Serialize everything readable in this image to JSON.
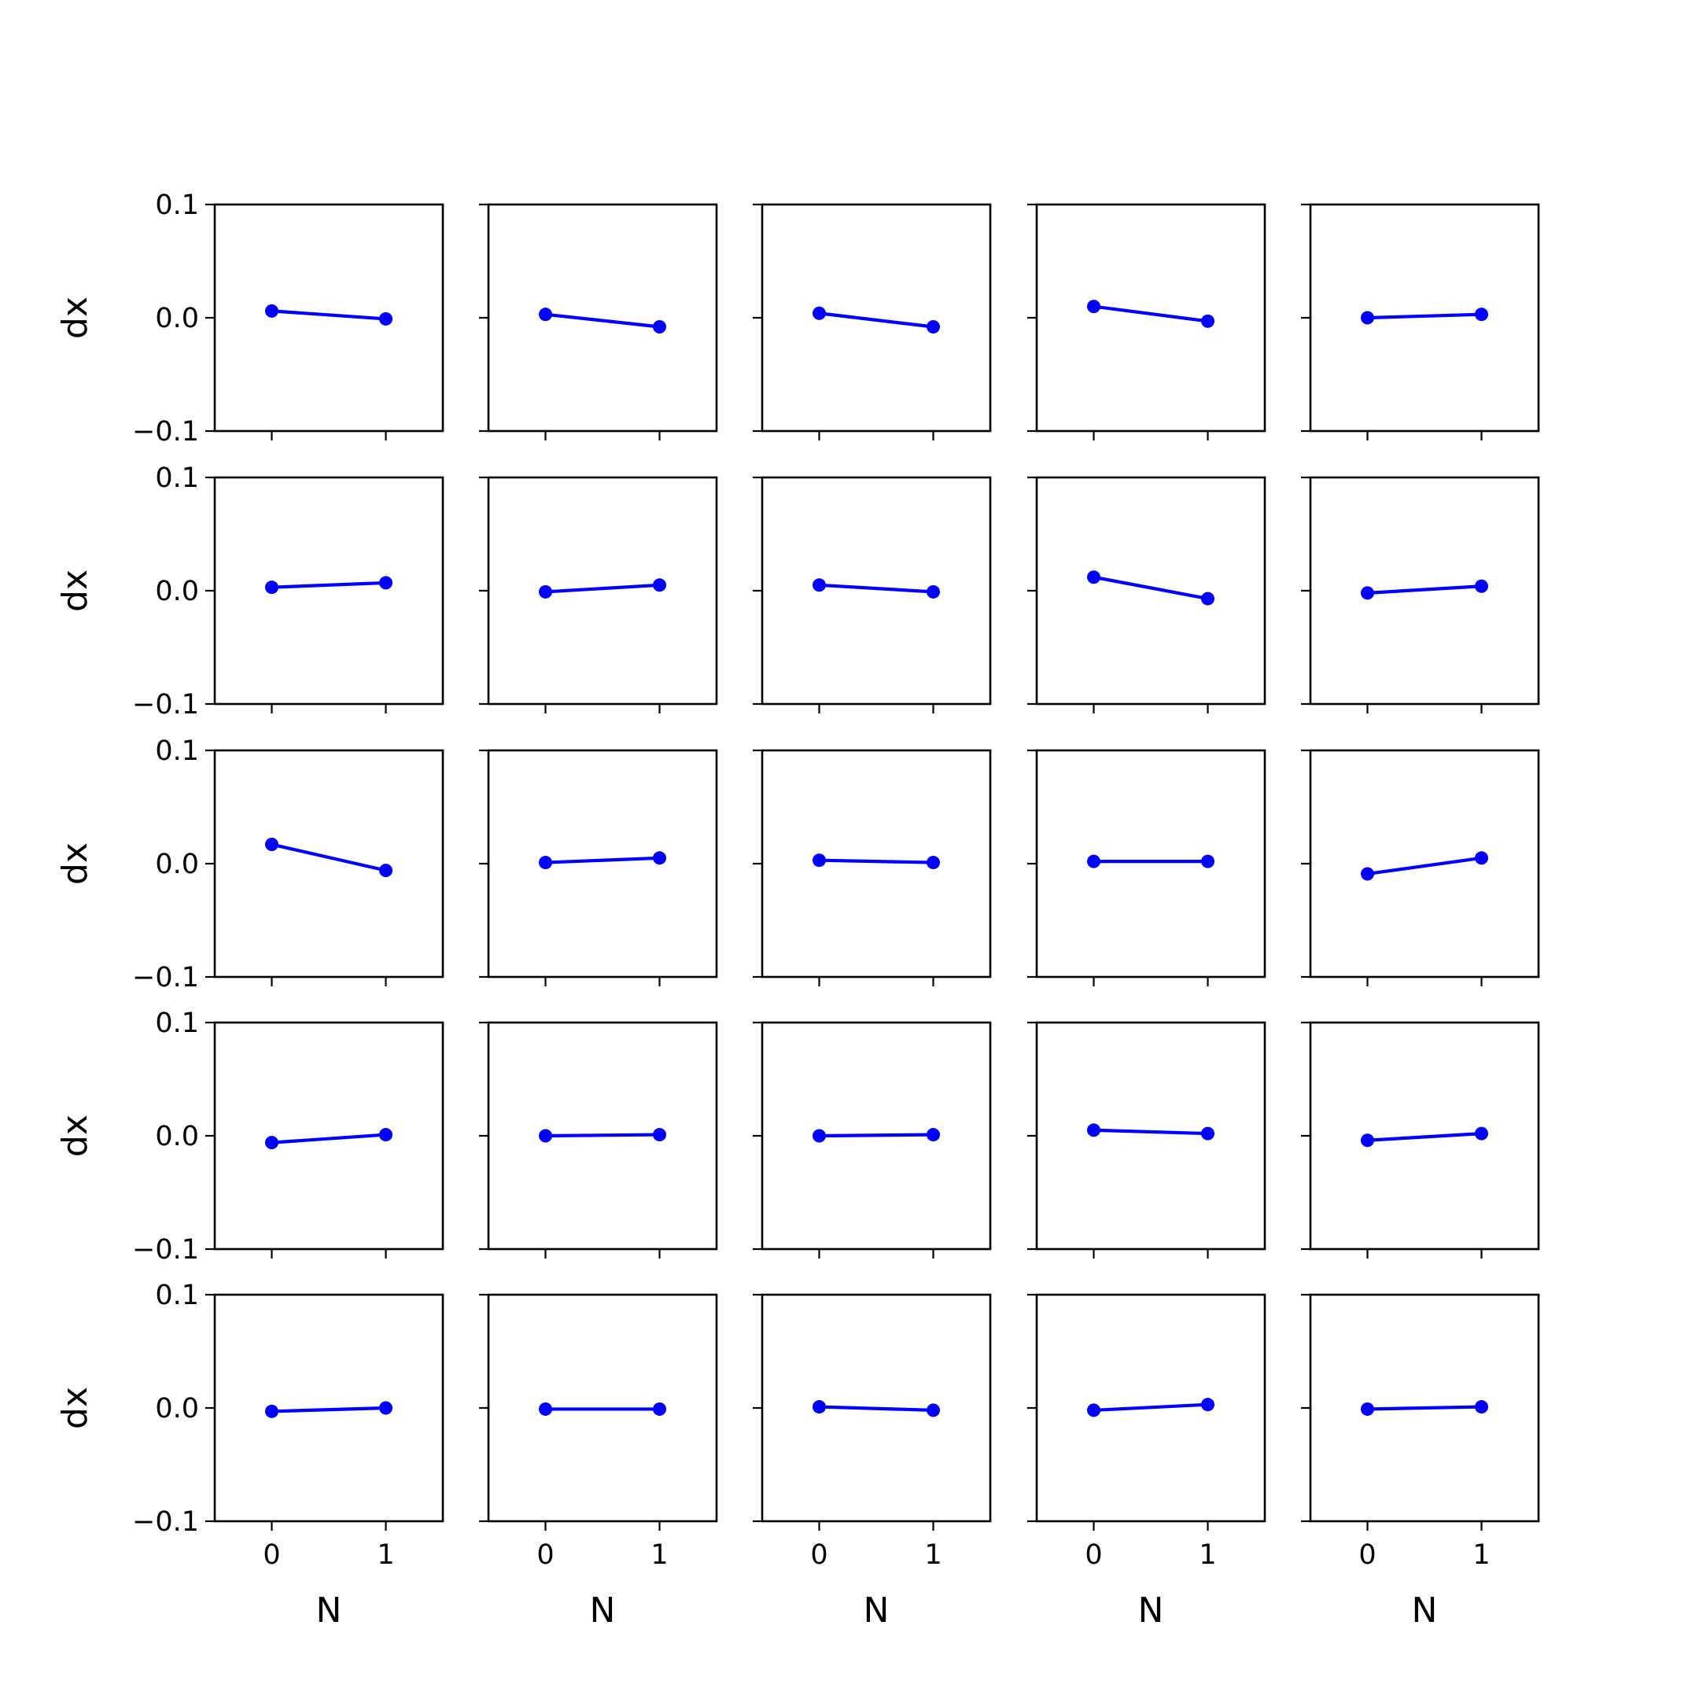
{
  "chart_data": {
    "type": "line",
    "layout": {
      "rows": 5,
      "cols": 5
    },
    "xlabel": "N",
    "ylabel": "dx",
    "xlim": [
      -0.5,
      1.5
    ],
    "ylim": [
      -0.1,
      0.1
    ],
    "x_ticks": [
      0,
      1
    ],
    "x_tick_labels": [
      "0",
      "1"
    ],
    "y_ticks": [
      0.1,
      0.0,
      -0.1
    ],
    "y_tick_labels": [
      "0.1",
      "0.0",
      "−0.1"
    ],
    "line_color": "#0000ff",
    "marker": "circle",
    "grid": false,
    "x": [
      0,
      1
    ],
    "panels": [
      {
        "row": 0,
        "col": 0,
        "values": [
          0.006,
          -0.001
        ]
      },
      {
        "row": 0,
        "col": 1,
        "values": [
          0.003,
          -0.008
        ]
      },
      {
        "row": 0,
        "col": 2,
        "values": [
          0.004,
          -0.008
        ]
      },
      {
        "row": 0,
        "col": 3,
        "values": [
          0.01,
          -0.003
        ]
      },
      {
        "row": 0,
        "col": 4,
        "values": [
          0.0,
          0.003
        ]
      },
      {
        "row": 1,
        "col": 0,
        "values": [
          0.003,
          0.007
        ]
      },
      {
        "row": 1,
        "col": 1,
        "values": [
          -0.001,
          0.005
        ]
      },
      {
        "row": 1,
        "col": 2,
        "values": [
          0.005,
          -0.001
        ]
      },
      {
        "row": 1,
        "col": 3,
        "values": [
          0.012,
          -0.007
        ]
      },
      {
        "row": 1,
        "col": 4,
        "values": [
          -0.002,
          0.004
        ]
      },
      {
        "row": 2,
        "col": 0,
        "values": [
          0.017,
          -0.006
        ]
      },
      {
        "row": 2,
        "col": 1,
        "values": [
          0.001,
          0.005
        ]
      },
      {
        "row": 2,
        "col": 2,
        "values": [
          0.003,
          0.001
        ]
      },
      {
        "row": 2,
        "col": 3,
        "values": [
          0.002,
          0.002
        ]
      },
      {
        "row": 2,
        "col": 4,
        "values": [
          -0.009,
          0.005
        ]
      },
      {
        "row": 3,
        "col": 0,
        "values": [
          -0.006,
          0.001
        ]
      },
      {
        "row": 3,
        "col": 1,
        "values": [
          0.0,
          0.001
        ]
      },
      {
        "row": 3,
        "col": 2,
        "values": [
          0.0,
          0.001
        ]
      },
      {
        "row": 3,
        "col": 3,
        "values": [
          0.005,
          0.002
        ]
      },
      {
        "row": 3,
        "col": 4,
        "values": [
          -0.004,
          0.002
        ]
      },
      {
        "row": 4,
        "col": 0,
        "values": [
          -0.003,
          0.0
        ]
      },
      {
        "row": 4,
        "col": 1,
        "values": [
          -0.001,
          -0.001
        ]
      },
      {
        "row": 4,
        "col": 2,
        "values": [
          0.001,
          -0.002
        ]
      },
      {
        "row": 4,
        "col": 3,
        "values": [
          -0.002,
          0.003
        ]
      },
      {
        "row": 4,
        "col": 4,
        "values": [
          -0.001,
          0.001
        ]
      }
    ]
  }
}
